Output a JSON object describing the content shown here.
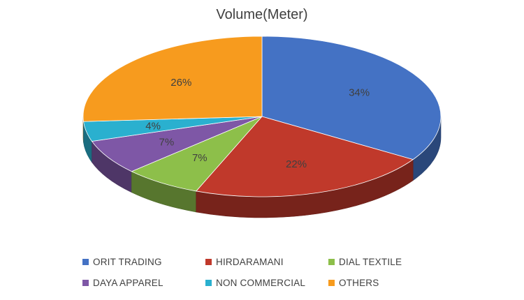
{
  "chart_data": {
    "type": "pie",
    "title": "Volume(Meter)",
    "categories": [
      "ORIT TRADING",
      "HIRDARAMANI",
      "DIAL TEXTILE",
      "DAYA APPAREL",
      "NON COMMERCIAL",
      "OTHERS"
    ],
    "values": [
      34,
      22,
      7,
      7,
      4,
      26
    ],
    "labels": [
      "34%",
      "22%",
      "7%",
      "7%",
      "4%",
      "26%"
    ],
    "colors": [
      "#4472C4",
      "#C0392B",
      "#8DBF4A",
      "#7E57A6",
      "#2AB0CF",
      "#F79B1E"
    ],
    "legend_position": "bottom",
    "style": "3d"
  }
}
